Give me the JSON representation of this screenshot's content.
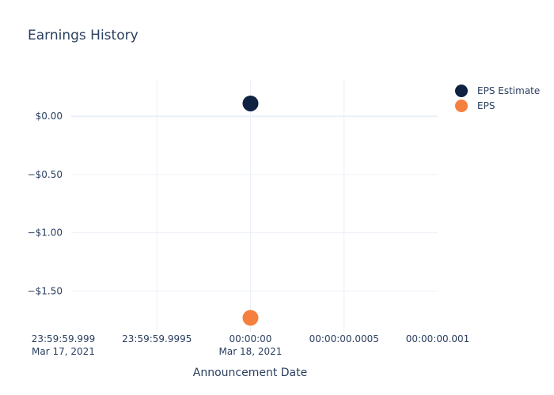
{
  "chart_data": {
    "type": "scatter",
    "title": "Earnings History",
    "xlabel": "Announcement Date",
    "ylabel": "",
    "x_ticks": [
      {
        "x_ms": -1,
        "line1": "23:59:59.999",
        "line2": "Mar 17, 2021"
      },
      {
        "x_ms": -0.5,
        "line1": "23:59:59.9995",
        "line2": ""
      },
      {
        "x_ms": 0,
        "line1": "00:00:00",
        "line2": "Mar 18, 2021"
      },
      {
        "x_ms": 0.5,
        "line1": "00:00:00.0005",
        "line2": ""
      },
      {
        "x_ms": 1,
        "line1": "00:00:00.001",
        "line2": ""
      }
    ],
    "x_range_ms": [
      -1,
      1
    ],
    "y_ticks": [
      {
        "value": 0.0,
        "label": "$0.00"
      },
      {
        "value": -0.5,
        "label": "−$0.50"
      },
      {
        "value": -1.0,
        "label": "−$1.00"
      },
      {
        "value": -1.5,
        "label": "−$1.50"
      }
    ],
    "ylim": [
      -1.85,
      0.32
    ],
    "series": [
      {
        "name": "EPS Estimate",
        "color": "#0f2242",
        "points": [
          {
            "x_ms": 0,
            "y": 0.11
          }
        ]
      },
      {
        "name": "EPS",
        "color": "#f5803e",
        "points": [
          {
            "x_ms": 0,
            "y": -1.73
          }
        ]
      }
    ],
    "grid": true,
    "legend": "top-right"
  }
}
